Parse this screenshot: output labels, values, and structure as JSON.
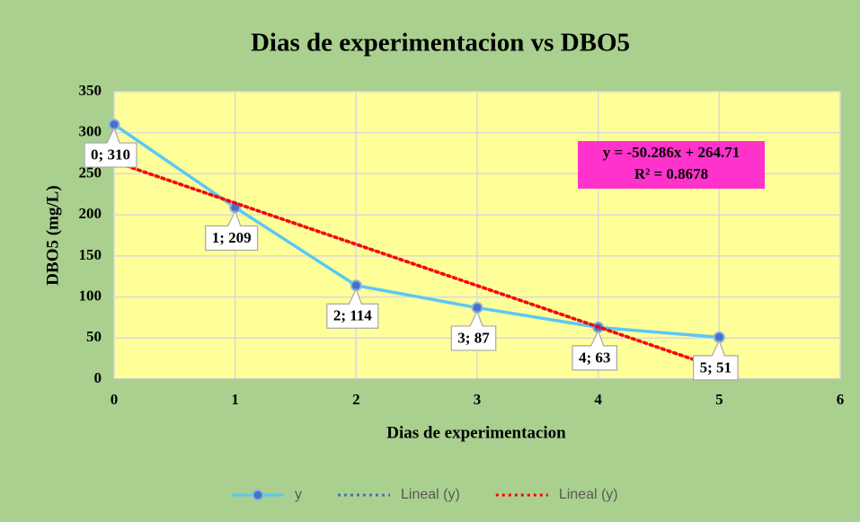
{
  "chart_data": {
    "type": "line",
    "title": "Dias de experimentacion vs DBO5",
    "x_label": "Dias de experimentacion",
    "y_label": "DBO5 (mg/L)",
    "x": [
      0,
      1,
      2,
      3,
      4,
      5
    ],
    "series": [
      {
        "name": "y",
        "color": "#5bc8f5",
        "marker_color": "#4472c4",
        "style": "solid",
        "values": [
          310,
          209,
          114,
          87,
          63,
          51
        ],
        "value_labels": [
          "0; 310",
          "1; 209",
          "2; 114",
          "3; 87",
          "4; 63",
          "5; 51"
        ]
      },
      {
        "name": "Lineal (y)",
        "color": "#4472c4",
        "style": "dotted",
        "values": [
          264.71,
          214.424,
          164.138,
          113.852,
          63.566,
          13.28
        ]
      },
      {
        "name": "Lineal (y)",
        "color": "#ff0000",
        "style": "dotted",
        "values": [
          264.71,
          214.424,
          164.138,
          113.852,
          63.566,
          13.28
        ]
      }
    ],
    "annotations": [
      "y = -50.286x + 264.71",
      "R² = 0.8678"
    ],
    "xlim": [
      0,
      6
    ],
    "xticks": [
      0,
      1,
      2,
      3,
      4,
      5,
      6
    ],
    "ylim": [
      0,
      350
    ],
    "yticks": [
      0,
      50,
      100,
      150,
      200,
      250,
      300,
      350
    ],
    "grid": true,
    "legend": "bottom"
  }
}
